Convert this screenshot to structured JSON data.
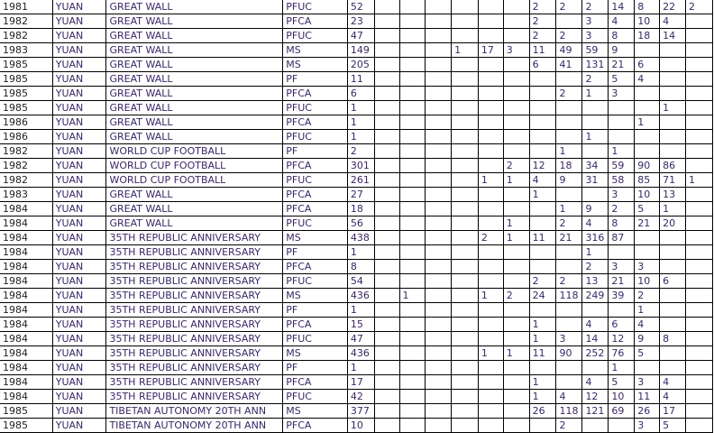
{
  "rows": [
    {
      "year": "1981",
      "currency": "YUAN",
      "name": "GREAT WALL",
      "type": "PFUC",
      "total": "52",
      "values": [
        "",
        "",
        "",
        "",
        "",
        "",
        "2",
        "2",
        "2",
        "14",
        "8",
        "22",
        "2"
      ]
    },
    {
      "year": "1982",
      "currency": "YUAN",
      "name": "GREAT WALL",
      "type": "PFCA",
      "total": "23",
      "values": [
        "",
        "",
        "",
        "",
        "",
        "",
        "2",
        "",
        "3",
        "4",
        "10",
        "4",
        ""
      ]
    },
    {
      "year": "1982",
      "currency": "YUAN",
      "name": "GREAT WALL",
      "type": "PFUC",
      "total": "47",
      "values": [
        "",
        "",
        "",
        "",
        "",
        "",
        "2",
        "2",
        "3",
        "8",
        "18",
        "14",
        ""
      ]
    },
    {
      "year": "1983",
      "currency": "YUAN",
      "name": "GREAT WALL",
      "type": "MS",
      "total": "149",
      "values": [
        "",
        "",
        "",
        "1",
        "17",
        "3",
        "11",
        "49",
        "59",
        "9",
        "",
        "",
        ""
      ]
    },
    {
      "year": "1985",
      "currency": "YUAN",
      "name": "GREAT WALL",
      "type": "MS",
      "total": "205",
      "values": [
        "",
        "",
        "",
        "",
        "",
        "",
        "6",
        "41",
        "131",
        "21",
        "6",
        "",
        ""
      ]
    },
    {
      "year": "1985",
      "currency": "YUAN",
      "name": "GREAT WALL",
      "type": "PF",
      "total": "11",
      "values": [
        "",
        "",
        "",
        "",
        "",
        "",
        "",
        "",
        "2",
        "5",
        "4",
        "",
        ""
      ]
    },
    {
      "year": "1985",
      "currency": "YUAN",
      "name": "GREAT WALL",
      "type": "PFCA",
      "total": "6",
      "values": [
        "",
        "",
        "",
        "",
        "",
        "",
        "",
        "2",
        "1",
        "3",
        "",
        "",
        ""
      ]
    },
    {
      "year": "1985",
      "currency": "YUAN",
      "name": "GREAT WALL",
      "type": "PFUC",
      "total": "1",
      "values": [
        "",
        "",
        "",
        "",
        "",
        "",
        "",
        "",
        "",
        "",
        "",
        "1",
        ""
      ]
    },
    {
      "year": "1986",
      "currency": "YUAN",
      "name": "GREAT WALL",
      "type": "PFCA",
      "total": "1",
      "values": [
        "",
        "",
        "",
        "",
        "",
        "",
        "",
        "",
        "",
        "",
        "1",
        "",
        ""
      ]
    },
    {
      "year": "1986",
      "currency": "YUAN",
      "name": "GREAT WALL",
      "type": "PFUC",
      "total": "1",
      "values": [
        "",
        "",
        "",
        "",
        "",
        "",
        "",
        "",
        "1",
        "",
        "",
        "",
        ""
      ]
    },
    {
      "year": "1982",
      "currency": "YUAN",
      "name": "WORLD CUP FOOTBALL",
      "type": "PF",
      "total": "2",
      "values": [
        "",
        "",
        "",
        "",
        "",
        "",
        "",
        "1",
        "",
        "1",
        "",
        "",
        ""
      ]
    },
    {
      "year": "1982",
      "currency": "YUAN",
      "name": "WORLD CUP FOOTBALL",
      "type": "PFCA",
      "total": "301",
      "values": [
        "",
        "",
        "",
        "",
        "",
        "2",
        "12",
        "18",
        "34",
        "59",
        "90",
        "86",
        ""
      ]
    },
    {
      "year": "1982",
      "currency": "YUAN",
      "name": "WORLD CUP FOOTBALL",
      "type": "PFUC",
      "total": "261",
      "values": [
        "",
        "",
        "",
        "",
        "1",
        "1",
        "4",
        "9",
        "31",
        "58",
        "85",
        "71",
        "1"
      ]
    },
    {
      "year": "1983",
      "currency": "YUAN",
      "name": "GREAT WALL",
      "type": "PFCA",
      "total": "27",
      "values": [
        "",
        "",
        "",
        "",
        "",
        "",
        "1",
        "",
        "",
        "3",
        "10",
        "13",
        ""
      ]
    },
    {
      "year": "1984",
      "currency": "YUAN",
      "name": "GREAT WALL",
      "type": "PFCA",
      "total": "18",
      "values": [
        "",
        "",
        "",
        "",
        "",
        "",
        "",
        "1",
        "9",
        "2",
        "5",
        "1",
        ""
      ]
    },
    {
      "year": "1984",
      "currency": "YUAN",
      "name": "GREAT WALL",
      "type": "PFUC",
      "total": "56",
      "values": [
        "",
        "",
        "",
        "",
        "",
        "1",
        "",
        "2",
        "4",
        "8",
        "21",
        "20",
        ""
      ]
    },
    {
      "year": "1984",
      "currency": "YUAN",
      "name": "35TH REPUBLIC ANNIVERSARY",
      "type": "MS",
      "total": "438",
      "values": [
        "",
        "",
        "",
        "",
        "2",
        "1",
        "11",
        "21",
        "316",
        "87",
        "",
        "",
        ""
      ]
    },
    {
      "year": "1984",
      "currency": "YUAN",
      "name": "35TH REPUBLIC ANNIVERSARY",
      "type": "PF",
      "total": "1",
      "values": [
        "",
        "",
        "",
        "",
        "",
        "",
        "",
        "",
        "1",
        "",
        "",
        "",
        ""
      ]
    },
    {
      "year": "1984",
      "currency": "YUAN",
      "name": "35TH REPUBLIC ANNIVERSARY",
      "type": "PFCA",
      "total": "8",
      "values": [
        "",
        "",
        "",
        "",
        "",
        "",
        "",
        "",
        "2",
        "3",
        "3",
        "",
        ""
      ]
    },
    {
      "year": "1984",
      "currency": "YUAN",
      "name": "35TH REPUBLIC ANNIVERSARY",
      "type": "PFUC",
      "total": "54",
      "values": [
        "",
        "",
        "",
        "",
        "",
        "",
        "2",
        "2",
        "13",
        "21",
        "10",
        "6",
        ""
      ]
    },
    {
      "year": "1984",
      "currency": "YUAN",
      "name": "35TH REPUBLIC ANNIVERSARY",
      "type": "MS",
      "total": "436",
      "values": [
        "",
        "1",
        "",
        "",
        "1",
        "2",
        "24",
        "118",
        "249",
        "39",
        "2",
        "",
        ""
      ]
    },
    {
      "year": "1984",
      "currency": "YUAN",
      "name": "35TH REPUBLIC ANNIVERSARY",
      "type": "PF",
      "total": "1",
      "values": [
        "",
        "",
        "",
        "",
        "",
        "",
        "",
        "",
        "",
        "",
        "1",
        "",
        ""
      ]
    },
    {
      "year": "1984",
      "currency": "YUAN",
      "name": "35TH REPUBLIC ANNIVERSARY",
      "type": "PFCA",
      "total": "15",
      "values": [
        "",
        "",
        "",
        "",
        "",
        "",
        "1",
        "",
        "4",
        "6",
        "4",
        "",
        ""
      ]
    },
    {
      "year": "1984",
      "currency": "YUAN",
      "name": "35TH REPUBLIC ANNIVERSARY",
      "type": "PFUC",
      "total": "47",
      "values": [
        "",
        "",
        "",
        "",
        "",
        "",
        "1",
        "3",
        "14",
        "12",
        "9",
        "8",
        ""
      ]
    },
    {
      "year": "1984",
      "currency": "YUAN",
      "name": "35TH REPUBLIC ANNIVERSARY",
      "type": "MS",
      "total": "436",
      "values": [
        "",
        "",
        "",
        "",
        "1",
        "1",
        "11",
        "90",
        "252",
        "76",
        "5",
        "",
        ""
      ]
    },
    {
      "year": "1984",
      "currency": "YUAN",
      "name": "35TH REPUBLIC ANNIVERSARY",
      "type": "PF",
      "total": "1",
      "values": [
        "",
        "",
        "",
        "",
        "",
        "",
        "",
        "",
        "",
        "1",
        "",
        "",
        ""
      ]
    },
    {
      "year": "1984",
      "currency": "YUAN",
      "name": "35TH REPUBLIC ANNIVERSARY",
      "type": "PFCA",
      "total": "17",
      "values": [
        "",
        "",
        "",
        "",
        "",
        "",
        "1",
        "",
        "4",
        "5",
        "3",
        "4",
        ""
      ]
    },
    {
      "year": "1984",
      "currency": "YUAN",
      "name": "35TH REPUBLIC ANNIVERSARY",
      "type": "PFUC",
      "total": "42",
      "values": [
        "",
        "",
        "",
        "",
        "",
        "",
        "1",
        "4",
        "12",
        "10",
        "11",
        "4",
        ""
      ]
    },
    {
      "year": "1985",
      "currency": "YUAN",
      "name": "TIBETAN AUTONOMY 20TH ANN",
      "type": "MS",
      "total": "377",
      "values": [
        "",
        "",
        "",
        "",
        "",
        "",
        "26",
        "118",
        "121",
        "69",
        "26",
        "17",
        ""
      ]
    },
    {
      "year": "1985",
      "currency": "YUAN",
      "name": "TIBETAN AUTONOMY 20TH ANN",
      "type": "PFCA",
      "total": "10",
      "values": [
        "",
        "",
        "",
        "",
        "",
        "",
        "",
        "2",
        "",
        "",
        "3",
        "5",
        ""
      ]
    }
  ]
}
